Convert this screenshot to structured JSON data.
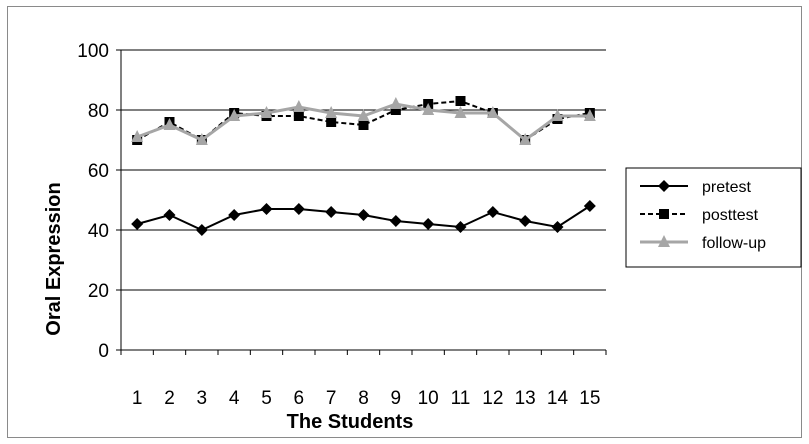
{
  "chart_data": {
    "type": "line",
    "xlabel": "The Students",
    "ylabel": "Oral Expression",
    "categories": [
      "1",
      "2",
      "3",
      "4",
      "5",
      "6",
      "7",
      "8",
      "9",
      "10",
      "11",
      "12",
      "13",
      "14",
      "15"
    ],
    "ylim": [
      0,
      100
    ],
    "yticks": [
      "0",
      "20",
      "40",
      "60",
      "80",
      "100"
    ],
    "grid": "horizontal",
    "legend": "right",
    "series": [
      {
        "name": "pretest",
        "color": "#000000",
        "marker": "diamond",
        "dash": "solid",
        "values": [
          42,
          45,
          40,
          45,
          47,
          47,
          46,
          45,
          43,
          42,
          41,
          46,
          43,
          41,
          48
        ]
      },
      {
        "name": "posttest",
        "color": "#000000",
        "marker": "square",
        "dash": "dashed",
        "values": [
          70,
          76,
          70,
          79,
          78,
          78,
          76,
          75,
          80,
          82,
          83,
          79,
          70,
          77,
          79
        ]
      },
      {
        "name": "follow-up",
        "color": "#a6a6a6",
        "marker": "triangle",
        "dash": "solid",
        "values": [
          71,
          75,
          70,
          78,
          79,
          81,
          79,
          78,
          82,
          80,
          79,
          79,
          70,
          78,
          78
        ]
      }
    ]
  }
}
